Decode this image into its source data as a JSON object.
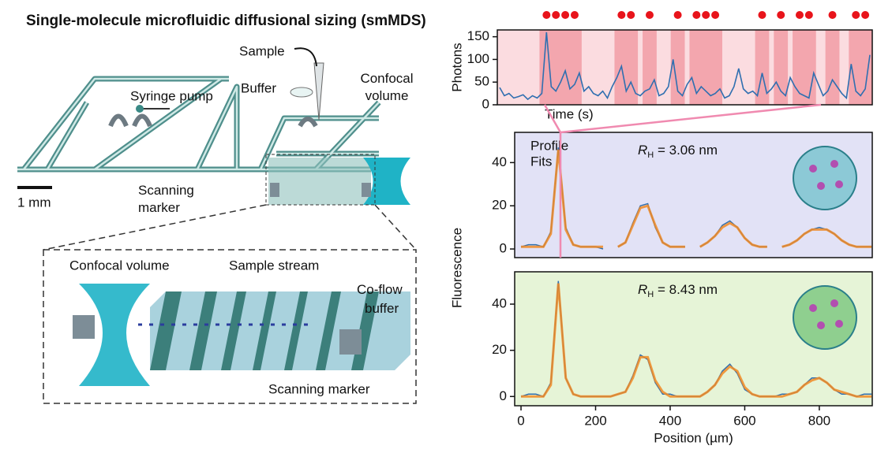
{
  "title": "Single-molecule microfluidic diffusional sizing (smMDS)",
  "diagram": {
    "syringe_pump": "Syringe pump",
    "sample": "Sample",
    "buffer": "Buffer",
    "confocal_volume": [
      "Confocal",
      "volume"
    ],
    "scale_bar": "1 mm",
    "scanning_marker": [
      "Scanning",
      "marker"
    ],
    "inset": {
      "confocal_volume": "Confocal volume",
      "sample_stream": "Sample stream",
      "co_flow_buffer": [
        "Co-flow",
        "buffer"
      ],
      "scanning_marker": "Scanning marker"
    }
  },
  "chart_data": [
    {
      "type": "line",
      "ylabel": "Photons",
      "xlabel": "Time (s)",
      "color": "#2f6fb0",
      "background": "#fbdce0",
      "burst_color": "#f3a6ae",
      "burst_marker_color": "#e8141b",
      "values": [
        38,
        20,
        25,
        15,
        18,
        22,
        12,
        20,
        15,
        25,
        160,
        40,
        30,
        50,
        75,
        35,
        45,
        70,
        30,
        40,
        25,
        20,
        30,
        15,
        40,
        60,
        85,
        30,
        50,
        25,
        20,
        30,
        35,
        55,
        20,
        25,
        40,
        100,
        30,
        20,
        45,
        60,
        25,
        40,
        30,
        20,
        25,
        35,
        15,
        20,
        40,
        80,
        35,
        25,
        30,
        20,
        70,
        25,
        35,
        50,
        30,
        20,
        60,
        40,
        25,
        20,
        15,
        70,
        45,
        20,
        30,
        55,
        40,
        25,
        15,
        90,
        30,
        20,
        35,
        110
      ],
      "bursts": [
        10,
        12,
        14,
        16,
        26,
        28,
        32,
        38,
        42,
        44,
        46,
        56,
        60,
        64,
        66,
        71,
        76,
        78
      ],
      "ylim": [
        0,
        165
      ],
      "yticks": [
        0,
        50,
        100,
        150
      ]
    },
    {
      "type": "line",
      "ylabel": "Fluorescence",
      "background": "#e2e2f6",
      "annotation": {
        "symbol": "R",
        "subscript": "H",
        "text": " = 3.06 nm"
      },
      "x": [
        0,
        20,
        40,
        60,
        80,
        100,
        120,
        140,
        160,
        180,
        200,
        220,
        240,
        260,
        280,
        300,
        320,
        340,
        360,
        380,
        400,
        420,
        440,
        460,
        480,
        500,
        520,
        540,
        560,
        580,
        600,
        620,
        640,
        660,
        680,
        700,
        720,
        740,
        760,
        780,
        800,
        820,
        840,
        860,
        880,
        900,
        920,
        940
      ],
      "series": [
        {
          "name": "Profile",
          "color": "#2f6fb0",
          "values": [
            1,
            2,
            2,
            1,
            8,
            47,
            10,
            2,
            1,
            1,
            1,
            0,
            null,
            1,
            3,
            12,
            20,
            21,
            10,
            3,
            1,
            1,
            1,
            null,
            1,
            3,
            6,
            11,
            13,
            10,
            5,
            2,
            1,
            1,
            null,
            1,
            2,
            4,
            7,
            9,
            10,
            9,
            7,
            4,
            2,
            1,
            1,
            1
          ]
        },
        {
          "name": "Fits",
          "color": "#f08a24",
          "values": [
            1,
            1,
            1,
            1,
            7,
            46,
            9,
            2,
            1,
            1,
            1,
            1,
            null,
            1,
            3,
            11,
            19,
            20,
            11,
            3,
            1,
            1,
            1,
            null,
            1,
            3,
            6,
            10,
            12,
            10,
            5,
            2,
            1,
            1,
            null,
            1,
            2,
            4,
            7,
            9,
            9,
            9,
            7,
            4,
            2,
            1,
            1,
            1
          ]
        }
      ],
      "xlim": [
        -17,
        942
      ],
      "ylim": [
        -4,
        54
      ],
      "yticks": [
        0,
        20,
        40
      ]
    },
    {
      "type": "line",
      "xlabel": "Position (µm)",
      "background": "#e6f4d7",
      "annotation": {
        "symbol": "R",
        "subscript": "H",
        "text": " = 8.43 nm"
      },
      "x": [
        0,
        20,
        40,
        60,
        80,
        100,
        120,
        140,
        160,
        180,
        200,
        220,
        240,
        260,
        280,
        300,
        320,
        340,
        360,
        380,
        400,
        420,
        440,
        460,
        480,
        500,
        520,
        540,
        560,
        580,
        600,
        620,
        640,
        660,
        680,
        700,
        720,
        740,
        760,
        780,
        800,
        820,
        840,
        860,
        880,
        900,
        920,
        940
      ],
      "series": [
        {
          "name": "Profile",
          "color": "#2f6fb0",
          "values": [
            0,
            1,
            1,
            0,
            6,
            50,
            8,
            1,
            0,
            0,
            0,
            0,
            0,
            1,
            2,
            9,
            18,
            16,
            6,
            1,
            1,
            0,
            0,
            0,
            0,
            2,
            5,
            11,
            14,
            10,
            3,
            1,
            0,
            0,
            0,
            1,
            1,
            2,
            5,
            8,
            8,
            6,
            3,
            1,
            1,
            0,
            1,
            1
          ]
        },
        {
          "name": "Fits",
          "color": "#f08a24",
          "values": [
            0,
            0,
            0,
            0,
            5,
            49,
            8,
            1,
            0,
            0,
            0,
            0,
            0,
            1,
            2,
            8,
            17,
            17,
            7,
            2,
            0,
            0,
            0,
            0,
            0,
            2,
            5,
            10,
            13,
            11,
            4,
            1,
            0,
            0,
            0,
            0,
            1,
            2,
            5,
            7,
            8,
            6,
            3,
            2,
            1,
            0,
            0,
            0
          ]
        }
      ],
      "xlim": [
        -17,
        942
      ],
      "xticks": [
        0,
        200,
        400,
        600,
        800
      ],
      "ylim": [
        -4,
        54
      ],
      "yticks": [
        0,
        20,
        40
      ]
    }
  ]
}
